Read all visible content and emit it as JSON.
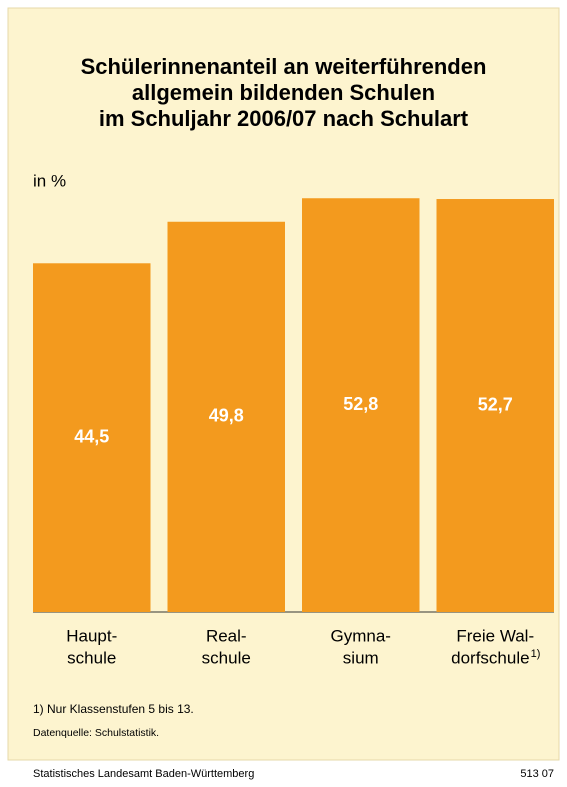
{
  "chart_data": {
    "type": "bar",
    "title": [
      "Schülerinnenanteil an weiterführenden",
      "allgemein bildenden Schulen",
      "im Schuljahr 2006/07 nach Schulart"
    ],
    "unit_label": "in %",
    "categories": [
      [
        "Haupt-",
        "schule"
      ],
      [
        "Real-",
        "schule"
      ],
      [
        "Gymna-",
        "sium"
      ],
      [
        "Freie Wal-",
        "dorfschule"
      ]
    ],
    "category_footnote_marks": [
      null,
      null,
      null,
      "1)"
    ],
    "values": [
      44.5,
      49.8,
      52.8,
      52.7
    ],
    "value_labels": [
      "44,5",
      "49,8",
      "52,8",
      "52,7"
    ],
    "color": "#f39a1e",
    "ylim": [
      0,
      55
    ],
    "footnotes": [
      "1) Nur Klassenstufen 5 bis 13.",
      "Datenquelle: Schulstatistik."
    ],
    "source": "Statistisches Landesamt Baden-Württemberg",
    "code": "513 07"
  }
}
